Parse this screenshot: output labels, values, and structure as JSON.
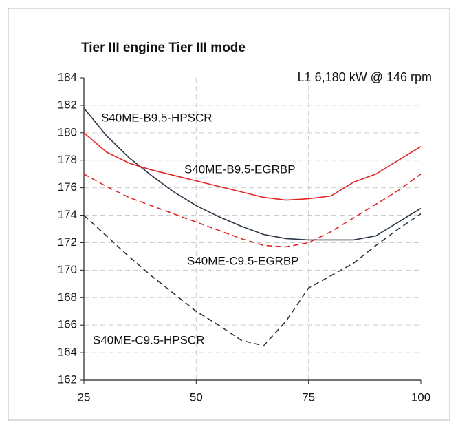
{
  "chart_data": {
    "type": "line",
    "title": "Tier III engine Tier III mode",
    "annotation": "L1 6,180 kW @ 146 rpm",
    "x": [
      25,
      30,
      35,
      40,
      45,
      50,
      55,
      60,
      65,
      70,
      75,
      80,
      85,
      90,
      95,
      100
    ],
    "xlim": [
      25,
      100
    ],
    "xticks": [
      25,
      50,
      75,
      100
    ],
    "ylim": [
      162,
      184
    ],
    "yticks": [
      162,
      164,
      166,
      168,
      170,
      172,
      174,
      176,
      178,
      180,
      182,
      184
    ],
    "grid": true,
    "series": [
      {
        "name": "S40ME-B9.5-HPSCR",
        "color": "#2a3646",
        "dash": false,
        "values": [
          181.8,
          179.8,
          178.2,
          176.9,
          175.7,
          174.7,
          173.9,
          173.2,
          172.6,
          172.3,
          172.2,
          172.2,
          172.2,
          172.5,
          173.5,
          174.5
        ]
      },
      {
        "name": "S40ME-B9.5-EGRBP",
        "color": "#e02424",
        "dash": false,
        "values": [
          180.0,
          178.6,
          177.8,
          177.3,
          176.9,
          176.5,
          176.1,
          175.7,
          175.3,
          175.1,
          175.2,
          175.4,
          176.4,
          177.0,
          178.0,
          179.0
        ]
      },
      {
        "name": "S40ME-C9.5-EGRBP",
        "color": "#e02424",
        "dash": true,
        "values": [
          177.0,
          176.1,
          175.3,
          174.7,
          174.1,
          173.5,
          172.9,
          172.3,
          171.8,
          171.7,
          172.0,
          172.8,
          173.8,
          174.8,
          175.8,
          177.0
        ]
      },
      {
        "name": "S40ME-C9.5-HPSCR",
        "color": "#2a3646",
        "dash": true,
        "values": [
          174.0,
          172.5,
          171.0,
          169.6,
          168.3,
          167.0,
          166.0,
          164.9,
          164.5,
          166.3,
          168.7,
          169.6,
          170.5,
          171.8,
          173.0,
          174.1
        ]
      }
    ]
  }
}
